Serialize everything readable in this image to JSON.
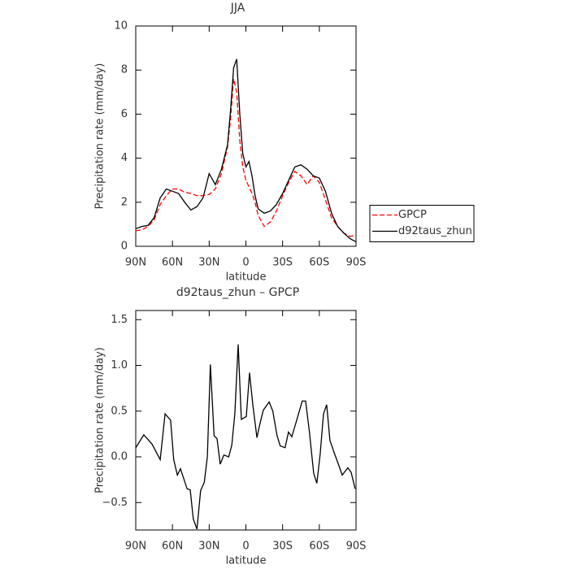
{
  "chart_data": [
    {
      "type": "line",
      "title": "JJA",
      "xlabel": "latitude",
      "ylabel": "Precipitation rate (mm/day)",
      "x": [
        90,
        85,
        80,
        75,
        70,
        65,
        60,
        55,
        50,
        45,
        40,
        35,
        30,
        25,
        20,
        15,
        12.5,
        10,
        7.5,
        5,
        2.5,
        0,
        -2.5,
        -5,
        -7.5,
        -10,
        -15,
        -20,
        -25,
        -30,
        -35,
        -40,
        -45,
        -50,
        -55,
        -60,
        -65,
        -70,
        -75,
        -80,
        -85,
        -90
      ],
      "series": [
        {
          "name": "GPCP",
          "color": "#ff0000",
          "linestyle": "dashed",
          "values": [
            0.7,
            0.75,
            0.9,
            1.2,
            1.9,
            2.3,
            2.6,
            2.6,
            2.45,
            2.4,
            2.3,
            2.3,
            2.35,
            2.6,
            3.3,
            4.5,
            5.8,
            7.6,
            7.0,
            4.8,
            3.6,
            3.0,
            2.7,
            2.4,
            2.0,
            1.4,
            0.9,
            1.1,
            1.6,
            2.3,
            2.9,
            3.4,
            3.2,
            2.8,
            3.2,
            2.9,
            2.1,
            1.3,
            0.9,
            0.6,
            0.45,
            0.5
          ]
        },
        {
          "name": "d92taus_zhun",
          "color": "#000000",
          "linestyle": "solid",
          "values": [
            0.8,
            0.9,
            0.95,
            1.3,
            2.2,
            2.6,
            2.5,
            2.4,
            2.0,
            1.65,
            1.8,
            2.2,
            3.3,
            2.8,
            3.5,
            4.6,
            6.2,
            8.1,
            8.5,
            6.0,
            4.2,
            3.6,
            3.85,
            3.2,
            2.3,
            1.7,
            1.5,
            1.6,
            1.9,
            2.4,
            3.0,
            3.6,
            3.7,
            3.5,
            3.2,
            3.1,
            2.5,
            1.5,
            0.9,
            0.6,
            0.35,
            0.2
          ]
        }
      ],
      "xlim": [
        90,
        -90
      ],
      "xticks": [
        {
          "value": 90,
          "label": "90N"
        },
        {
          "value": 60,
          "label": "60N"
        },
        {
          "value": 30,
          "label": "30N"
        },
        0,
        {
          "value": -30,
          "label": "30S"
        },
        {
          "value": -60,
          "label": "60S"
        },
        {
          "value": -90,
          "label": "90S"
        }
      ],
      "ylim": [
        0,
        10
      ],
      "yticks": [
        0,
        2,
        4,
        6,
        8,
        10
      ],
      "legend": "right"
    },
    {
      "type": "line",
      "title": "d92taus_zhun – GPCP",
      "xlabel": "latitude",
      "ylabel": "Precipitation rate (mm/day)",
      "x": [
        90,
        83.4,
        76.7,
        70,
        66,
        61.5,
        59,
        56,
        53.5,
        48,
        45.5,
        43,
        40,
        37,
        34,
        31.5,
        29,
        26,
        23.6,
        21,
        18,
        14,
        11.5,
        9,
        6.3,
        3.7,
        -0.3,
        -3,
        -5.6,
        -9,
        -11.6,
        -14.2,
        -19,
        -22,
        -25.5,
        -28,
        -32,
        -34.8,
        -37.5,
        -41.5,
        -46,
        -48.8,
        -52,
        -55.4,
        -58,
        -60.7,
        -63.4,
        -66,
        -68.7,
        -72,
        -75.3,
        -78.7,
        -83.3,
        -86,
        -89.3
      ],
      "color": "#000000",
      "values": [
        0.1,
        0.24,
        0.14,
        -0.03,
        0.47,
        0.4,
        -0.03,
        -0.2,
        -0.13,
        -0.35,
        -0.36,
        -0.68,
        -0.79,
        -0.37,
        -0.28,
        0,
        1.01,
        0.23,
        0.2,
        -0.08,
        0.02,
        0,
        0.13,
        0.47,
        1.23,
        0.41,
        0.44,
        0.92,
        0.58,
        0.21,
        0.37,
        0.51,
        0.6,
        0.5,
        0.23,
        0.12,
        0.1,
        0.27,
        0.22,
        0.4,
        0.61,
        0.61,
        0.26,
        -0.18,
        -0.29,
        0.03,
        0.47,
        0.57,
        0.18,
        0.05,
        -0.07,
        -0.2,
        -0.12,
        -0.17,
        -0.35
      ],
      "xlim": [
        90,
        -90
      ],
      "xticks": [
        {
          "value": 90,
          "label": "90N"
        },
        {
          "value": 60,
          "label": "60N"
        },
        {
          "value": 30,
          "label": "30N"
        },
        0,
        {
          "value": -30,
          "label": "30S"
        },
        {
          "value": -60,
          "label": "60S"
        },
        {
          "value": -90,
          "label": "90S"
        }
      ],
      "ylim": [
        -0.8,
        1.6
      ],
      "yticks": [
        {
          "value": -0.5,
          "label": "−0.5"
        },
        {
          "value": 0,
          "label": "0.0"
        },
        0.5,
        {
          "value": 1,
          "label": "1.0"
        },
        1.5
      ]
    }
  ]
}
